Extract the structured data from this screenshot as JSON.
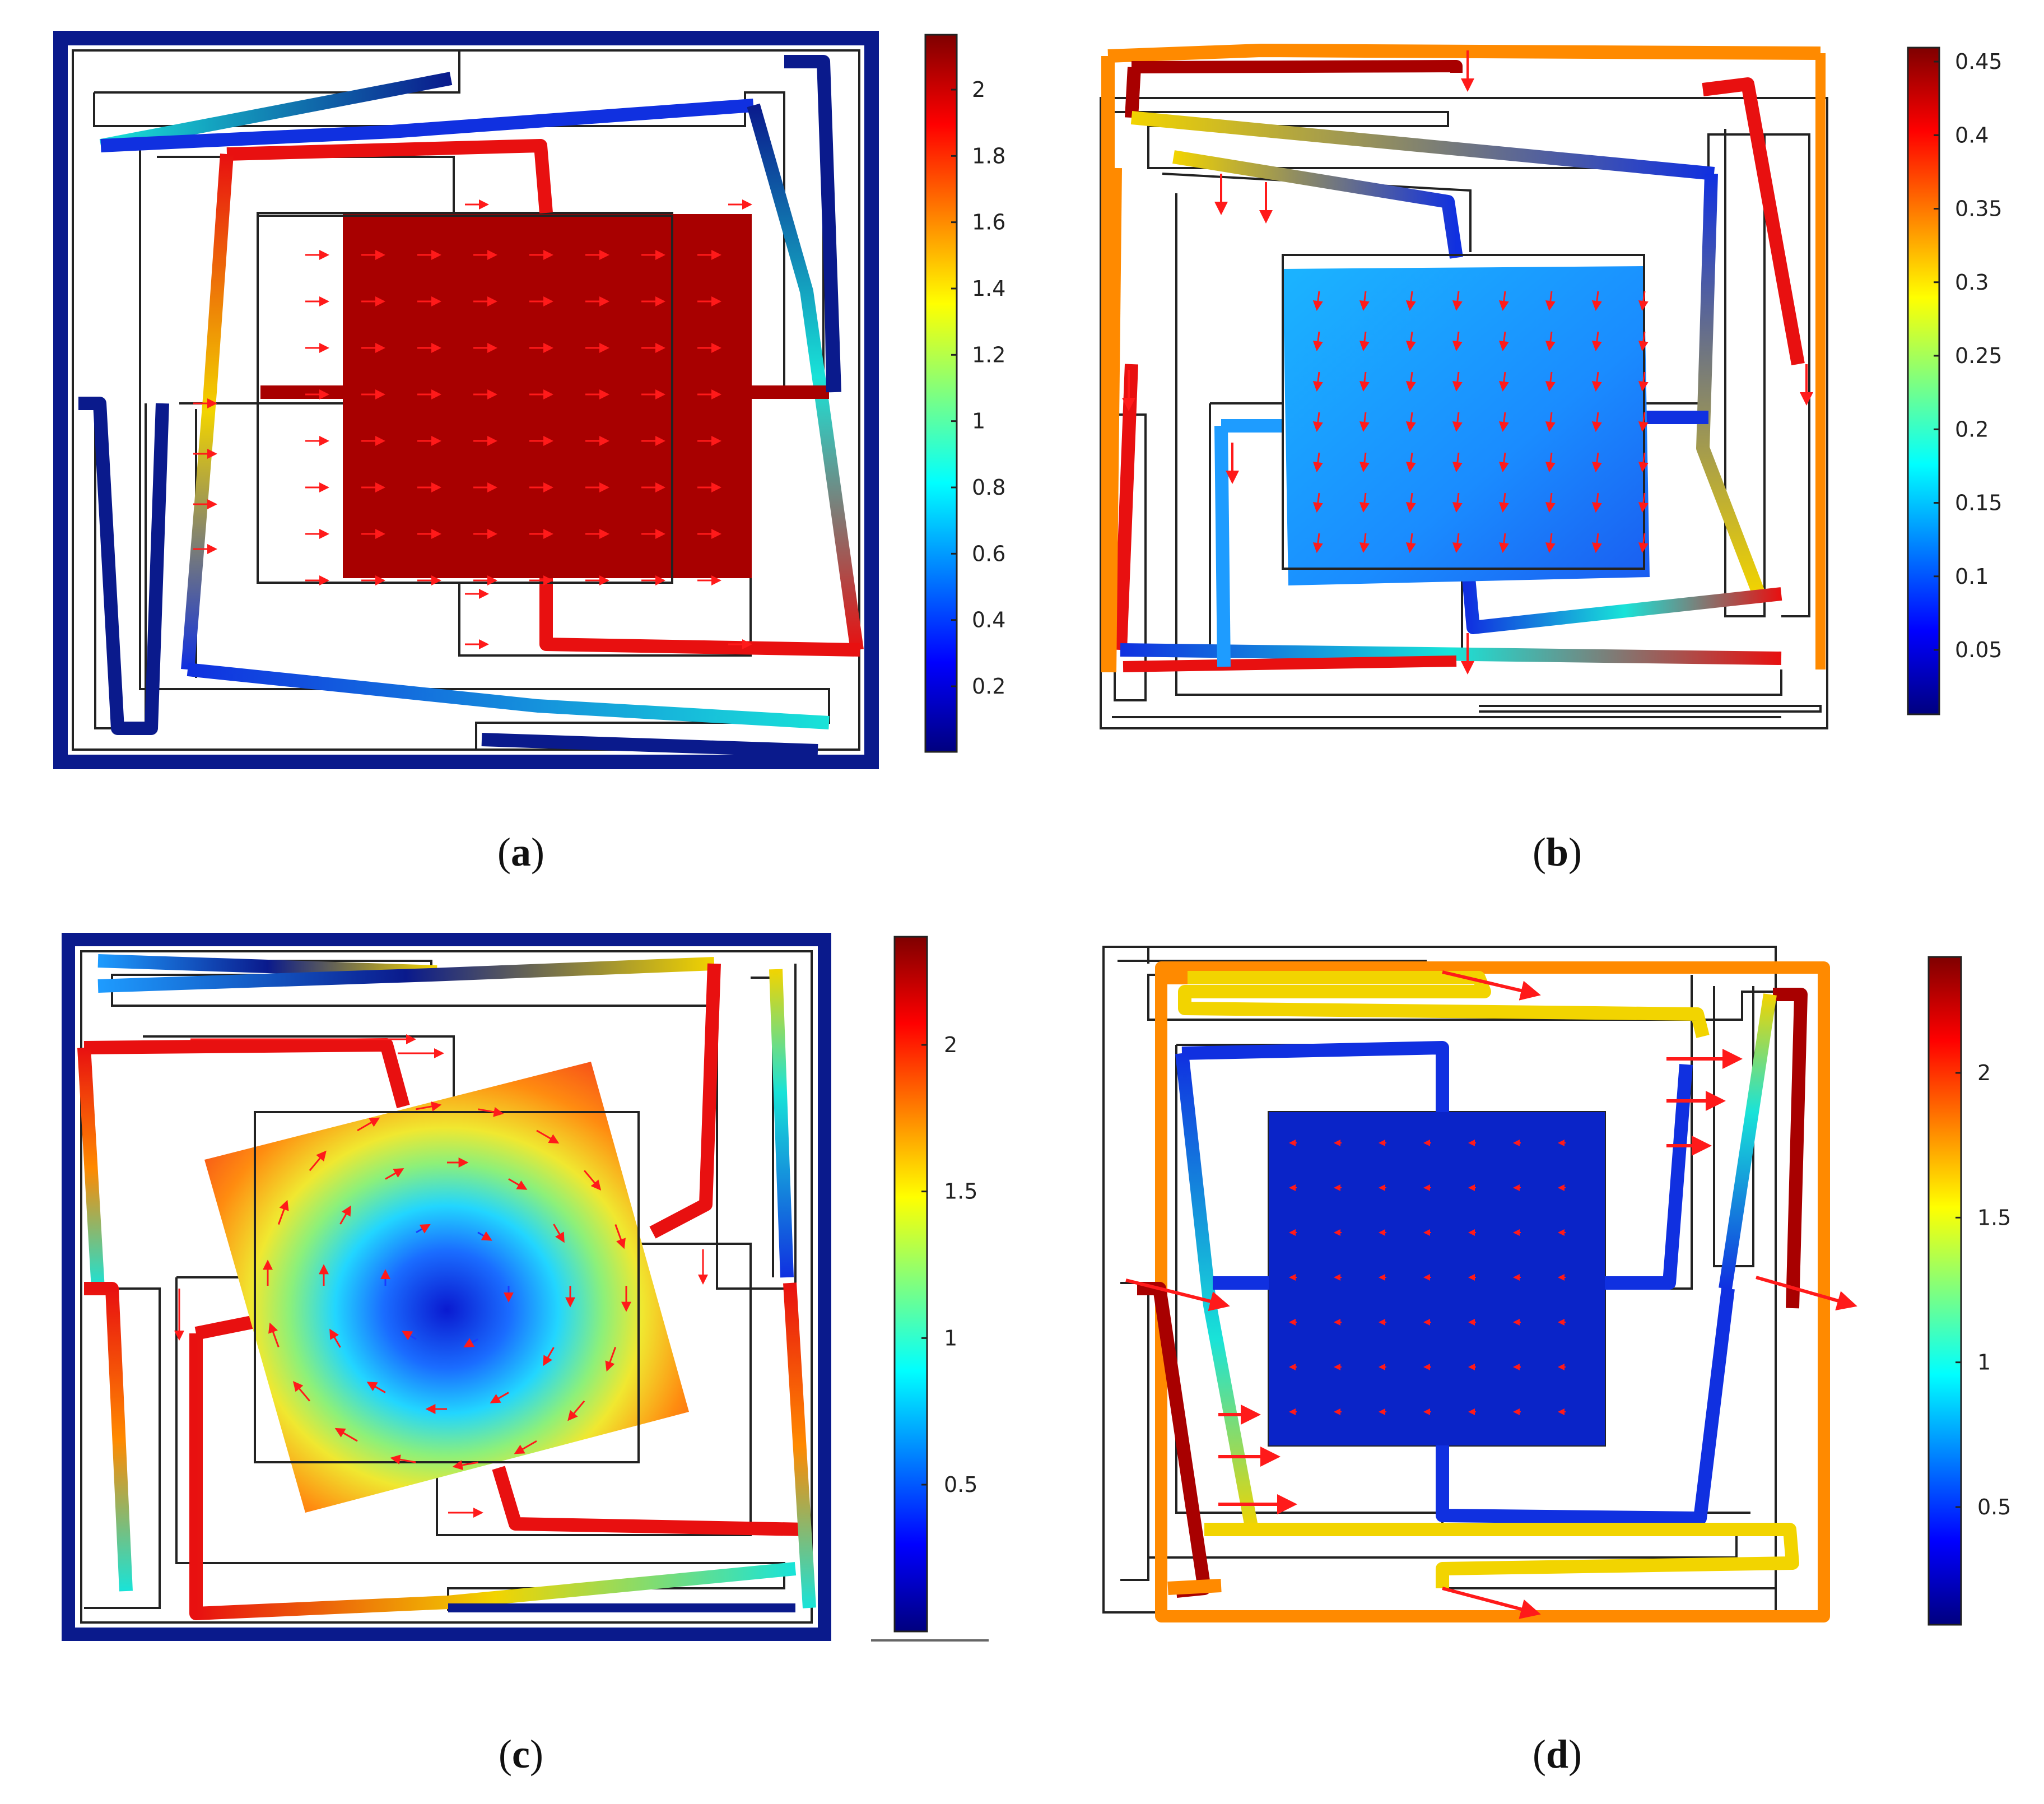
{
  "colors": {
    "navy": "#0a1a8c",
    "darkred": "#a80000",
    "red": "#e81010",
    "orange": "#ff8a00",
    "yellow": "#f2d400",
    "cyan": "#19e3d8",
    "lightblue": "#1e9cff",
    "blue": "#1030e0",
    "wire": "#222222",
    "arrow": "#ff1a1a"
  },
  "colormap": "jet",
  "panels": [
    {
      "id": "a",
      "caption": "a",
      "colorbar_ticks": [
        "2",
        "1.8",
        "1.6",
        "1.4",
        "1.2",
        "1",
        "0.8",
        "0.6",
        "0.4",
        "0.2"
      ],
      "proof_mass_icon": "solid-dark-red-square",
      "field": "uniform displacement in x, arrows pointing right"
    },
    {
      "id": "b",
      "caption": "b",
      "colorbar_ticks": [
        "0.45",
        "0.4",
        "0.35",
        "0.3",
        "0.25",
        "0.2",
        "0.15",
        "0.1",
        "0.05"
      ],
      "proof_mass_icon": "light-blue-gradient-square",
      "field": "displacement in y, arrows pointing down"
    },
    {
      "id": "c",
      "caption": "c",
      "colorbar_ticks": [
        "2",
        "1.5",
        "1",
        "0.5"
      ],
      "proof_mass_icon": "rotated-square-radial-gradient",
      "field": "rotation about z, circular arrows"
    },
    {
      "id": "d",
      "caption": "d",
      "colorbar_ticks": [
        "2",
        "1.5",
        "1",
        "0.5"
      ],
      "proof_mass_icon": "dark-blue-square",
      "field": "frame moves in x, large arrows on outer frame"
    }
  ]
}
